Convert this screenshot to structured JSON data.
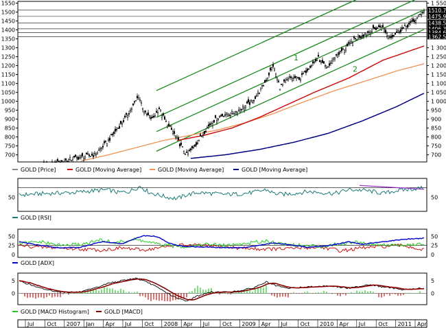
{
  "chart_data": [
    {
      "type": "candlestick",
      "panel": "price",
      "left_ticks": [
        1550,
        1500,
        1450,
        1400,
        1350,
        1300,
        1250,
        1200,
        1150,
        1100,
        1050,
        1000,
        950,
        900,
        850,
        800,
        750,
        700
      ],
      "right_ticks": [
        "1 550",
        "1 300",
        "1 250",
        "1 200",
        "1 150",
        "1 100",
        "1 050",
        "1 000",
        "950",
        "900",
        "850",
        "800",
        "750",
        "700"
      ],
      "ylim": [
        660,
        1560
      ],
      "price_labels": [
        "1510.7",
        "1475.9",
        "1438.5",
        "1406.3",
        "1384.6",
        "1362.5"
      ],
      "price_lines": [
        1510.7,
        1475.9,
        1438.5,
        1406.3,
        1384.6,
        1362.5
      ],
      "channel_labels": [
        "1",
        "2"
      ],
      "legend": [
        "GOLD [Price]",
        "GOLD [Moving Average]",
        "GOLD [Moving Average]",
        "GOLD [Moving Average]"
      ],
      "series_colors": [
        "#000000",
        "#cc1111",
        "#f09050",
        "#000080"
      ],
      "close_keypoints": [
        [
          0,
          600
        ],
        [
          20,
          640
        ],
        [
          40,
          680
        ],
        [
          55,
          700
        ],
        [
          65,
          780
        ],
        [
          75,
          880
        ],
        [
          82,
          960
        ],
        [
          87,
          1030
        ],
        [
          92,
          930
        ],
        [
          97,
          900
        ],
        [
          102,
          960
        ],
        [
          107,
          880
        ],
        [
          112,
          830
        ],
        [
          117,
          760
        ],
        [
          122,
          700
        ],
        [
          127,
          740
        ],
        [
          135,
          830
        ],
        [
          140,
          880
        ],
        [
          147,
          920
        ],
        [
          155,
          930
        ],
        [
          162,
          960
        ],
        [
          170,
          1000
        ],
        [
          178,
          1090
        ],
        [
          185,
          1200
        ],
        [
          190,
          1080
        ],
        [
          197,
          1130
        ],
        [
          205,
          1130
        ],
        [
          212,
          1200
        ],
        [
          218,
          1240
        ],
        [
          224,
          1180
        ],
        [
          230,
          1250
        ],
        [
          238,
          1300
        ],
        [
          245,
          1350
        ],
        [
          252,
          1380
        ],
        [
          258,
          1400
        ],
        [
          264,
          1420
        ],
        [
          270,
          1360
        ],
        [
          276,
          1390
        ],
        [
          282,
          1420
        ],
        [
          288,
          1450
        ],
        [
          295,
          1510
        ]
      ],
      "ma_red_keypoints": [
        [
          115,
          780
        ],
        [
          135,
          810
        ],
        [
          155,
          850
        ],
        [
          175,
          910
        ],
        [
          195,
          980
        ],
        [
          215,
          1050
        ],
        [
          240,
          1130
        ],
        [
          265,
          1230
        ],
        [
          295,
          1310
        ]
      ],
      "ma_orange_keypoints": [
        [
          45,
          665
        ],
        [
          65,
          700
        ],
        [
          85,
          740
        ],
        [
          105,
          780
        ],
        [
          125,
          810
        ],
        [
          145,
          840
        ],
        [
          165,
          880
        ],
        [
          185,
          930
        ],
        [
          205,
          990
        ],
        [
          230,
          1060
        ],
        [
          255,
          1120
        ],
        [
          275,
          1170
        ],
        [
          295,
          1210
        ]
      ],
      "ma_navy_keypoints": [
        [
          125,
          680
        ],
        [
          150,
          700
        ],
        [
          175,
          730
        ],
        [
          200,
          770
        ],
        [
          225,
          820
        ],
        [
          250,
          890
        ],
        [
          275,
          970
        ],
        [
          295,
          1045
        ]
      ]
    },
    {
      "type": "line",
      "panel": "rsi",
      "left_ticks": [
        50
      ],
      "right_ticks": [
        "50"
      ],
      "ylim": [
        20,
        90
      ],
      "legend": [
        "GOLD [RSI]"
      ],
      "series_colors": [
        "#1a7a7a",
        "#9933cc"
      ],
      "ref_lines": [
        70,
        30
      ],
      "rsi_keypoints": [
        [
          0,
          55
        ],
        [
          20,
          58
        ],
        [
          40,
          60
        ],
        [
          55,
          64
        ],
        [
          65,
          66
        ],
        [
          72,
          60
        ],
        [
          80,
          62
        ],
        [
          88,
          73
        ],
        [
          95,
          60
        ],
        [
          100,
          56
        ],
        [
          108,
          50
        ],
        [
          115,
          47
        ],
        [
          122,
          55
        ],
        [
          130,
          60
        ],
        [
          140,
          58
        ],
        [
          150,
          56
        ],
        [
          160,
          57
        ],
        [
          170,
          60
        ],
        [
          180,
          66
        ],
        [
          186,
          58
        ],
        [
          192,
          56
        ],
        [
          200,
          58
        ],
        [
          210,
          62
        ],
        [
          220,
          60
        ],
        [
          230,
          58
        ],
        [
          240,
          66
        ],
        [
          250,
          65
        ],
        [
          258,
          62
        ],
        [
          265,
          58
        ],
        [
          275,
          64
        ],
        [
          285,
          67
        ],
        [
          295,
          70
        ]
      ],
      "divergence_line": [
        [
          248,
          75
        ],
        [
          295,
          67
        ]
      ]
    },
    {
      "type": "line",
      "panel": "adx",
      "left_ticks": [
        50,
        25,
        0
      ],
      "right_ticks": [
        "50",
        "25",
        "0"
      ],
      "ylim": [
        -8,
        70
      ],
      "legend": [
        "GOLD [ADX]"
      ],
      "series_colors": [
        "#0000cc",
        "#22cc22",
        "#cc1111"
      ],
      "ref_lines": [
        25
      ],
      "adx_keypoints": [
        [
          0,
          35
        ],
        [
          15,
          25
        ],
        [
          30,
          18
        ],
        [
          45,
          20
        ],
        [
          60,
          35
        ],
        [
          75,
          30
        ],
        [
          90,
          52
        ],
        [
          100,
          50
        ],
        [
          110,
          30
        ],
        [
          120,
          22
        ],
        [
          140,
          20
        ],
        [
          160,
          18
        ],
        [
          175,
          25
        ],
        [
          185,
          32
        ],
        [
          195,
          28
        ],
        [
          210,
          20
        ],
        [
          225,
          24
        ],
        [
          240,
          35
        ],
        [
          250,
          28
        ],
        [
          265,
          35
        ],
        [
          280,
          42
        ],
        [
          295,
          45
        ]
      ],
      "dip_keypoints": [
        [
          0,
          30
        ],
        [
          15,
          35
        ],
        [
          30,
          25
        ],
        [
          45,
          28
        ],
        [
          60,
          40
        ],
        [
          70,
          32
        ],
        [
          85,
          42
        ],
        [
          95,
          33
        ],
        [
          105,
          25
        ],
        [
          120,
          22
        ],
        [
          135,
          28
        ],
        [
          150,
          25
        ],
        [
          165,
          30
        ],
        [
          180,
          38
        ],
        [
          190,
          30
        ],
        [
          205,
          25
        ],
        [
          220,
          22
        ],
        [
          235,
          30
        ],
        [
          245,
          35
        ],
        [
          260,
          28
        ],
        [
          275,
          25
        ],
        [
          295,
          28
        ]
      ],
      "dim_keypoints": [
        [
          0,
          25
        ],
        [
          15,
          20
        ],
        [
          30,
          18
        ],
        [
          45,
          15
        ],
        [
          60,
          12
        ],
        [
          75,
          18
        ],
        [
          90,
          12
        ],
        [
          105,
          20
        ],
        [
          115,
          26
        ],
        [
          130,
          25
        ],
        [
          145,
          22
        ],
        [
          160,
          18
        ],
        [
          175,
          15
        ],
        [
          190,
          15
        ],
        [
          205,
          18
        ],
        [
          220,
          20
        ],
        [
          235,
          10
        ],
        [
          250,
          18
        ],
        [
          265,
          22
        ],
        [
          280,
          25
        ],
        [
          295,
          12
        ]
      ]
    },
    {
      "type": "line+bar",
      "panel": "macd",
      "left_ticks": [
        5,
        0
      ],
      "right_ticks": [
        "5",
        "0"
      ],
      "ylim": [
        -4.5,
        8
      ],
      "legend": [
        "GOLD [MACD Histogram]",
        "GOLD [MACD]"
      ],
      "series_colors": [
        "#22cc22",
        "#cc1111",
        "#8b0000",
        "#000000"
      ],
      "macd_keypoints": [
        [
          0,
          5
        ],
        [
          15,
          2
        ],
        [
          30,
          0.5
        ],
        [
          45,
          0.5
        ],
        [
          55,
          2
        ],
        [
          65,
          4
        ],
        [
          75,
          5
        ],
        [
          85,
          6
        ],
        [
          95,
          4
        ],
        [
          105,
          1
        ],
        [
          115,
          -2
        ],
        [
          122,
          -3
        ],
        [
          130,
          -1
        ],
        [
          140,
          0.5
        ],
        [
          155,
          0.5
        ],
        [
          170,
          2
        ],
        [
          180,
          4.5
        ],
        [
          187,
          3
        ],
        [
          195,
          2
        ],
        [
          210,
          2.5
        ],
        [
          225,
          3
        ],
        [
          240,
          2
        ],
        [
          255,
          3.5
        ],
        [
          265,
          2.5
        ],
        [
          280,
          1.5
        ],
        [
          295,
          2
        ]
      ]
    }
  ],
  "xaxis": {
    "labels": [
      "Jul",
      "Oct",
      "2007",
      "Jan",
      "Apr",
      "Jul",
      "Oct",
      "2008",
      "Apr",
      "Jul",
      "Oct",
      "2009",
      "Apr",
      "Jul",
      "Oct",
      "2010",
      "Apr",
      "Jul",
      "Oct",
      "2011",
      "Apr"
    ]
  }
}
